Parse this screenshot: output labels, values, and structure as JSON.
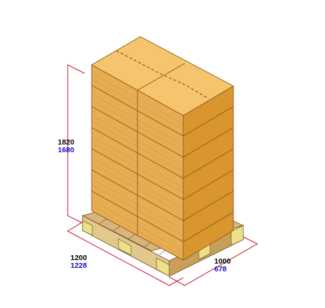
{
  "dimensions": {
    "height": {
      "outer": "1820",
      "inner": "1680"
    },
    "length": {
      "outer": "1200",
      "inner": "1228"
    },
    "width": {
      "outer": "1000",
      "inner": "678"
    }
  },
  "colors": {
    "outer_text": "#000000",
    "inner_text": "#1010d0",
    "dimension_line": "#c8102e",
    "box_top": "#f5c46c",
    "box_front": "#e7ad53",
    "box_side": "#d9962f",
    "pallet_block": "#ede08a",
    "pallet_board": "#d7b57c"
  },
  "icons": [
    "pallet-3d-icon",
    "carton-stack-icon",
    "dimension-line-icon"
  ]
}
